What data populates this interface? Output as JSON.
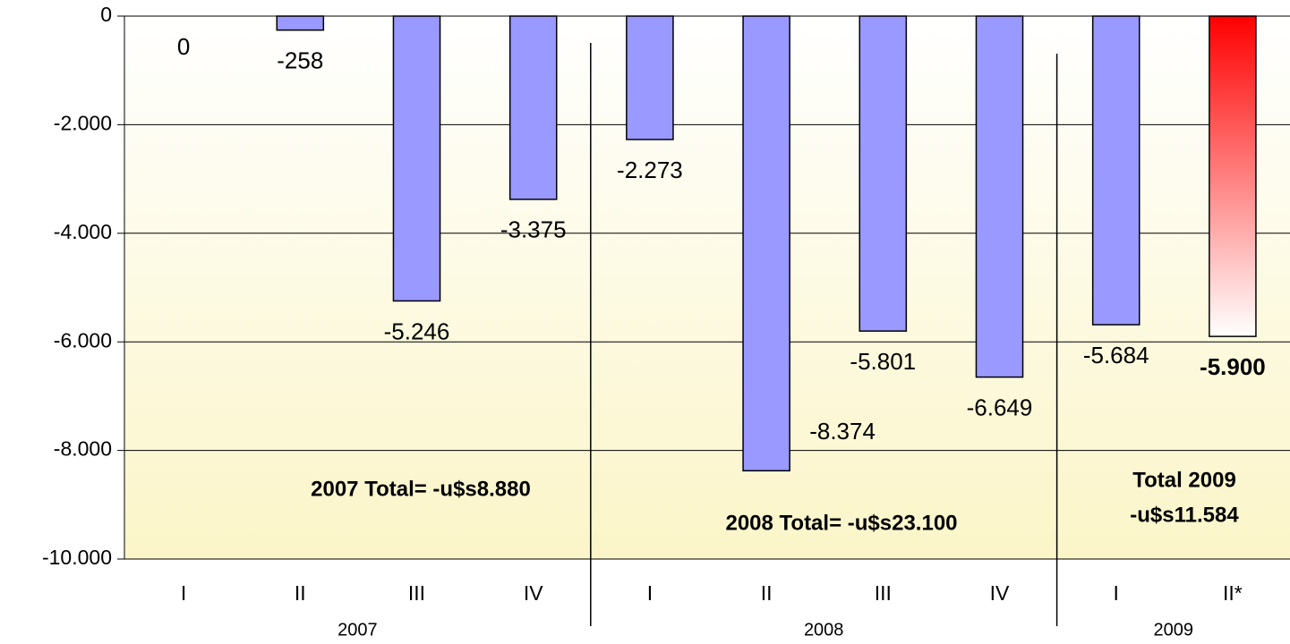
{
  "chart_data": {
    "type": "bar",
    "categories": [
      "I",
      "II",
      "III",
      "IV",
      "I",
      "II",
      "III",
      "IV",
      "I",
      "II*"
    ],
    "values": [
      0,
      -258,
      -5246,
      -3375,
      -2273,
      -8374,
      -5801,
      -6649,
      -5684,
      -5900
    ],
    "value_labels": [
      "0",
      "-258",
      "-5.246",
      "-3.375",
      "-2.273",
      "-8.374",
      "-5.801",
      "-6.649",
      "-5.684",
      "-5.900"
    ],
    "color": "#9999ff",
    "highlight": {
      "index": 9,
      "color": "#ff0000"
    },
    "groups": [
      {
        "label": "2007",
        "size": 4
      },
      {
        "label": "2008",
        "size": 4
      },
      {
        "label": "2009",
        "size": 2
      }
    ],
    "ylim": [
      -10000,
      0
    ],
    "yticks": [
      0,
      {
        "value": -2000,
        "label": "-2.000"
      },
      {
        "value": -4000,
        "label": "-4.000"
      },
      {
        "value": -6000,
        "label": "-6.000"
      },
      {
        "value": -8000,
        "label": "-8.000"
      },
      {
        "value": -10000,
        "label": "-10.000"
      }
    ],
    "grid": true,
    "annotations": [
      "2007 Total= -u$s8.880",
      "2008 Total= -u$s23.100",
      "Total 2009",
      "-u$s11.584"
    ]
  }
}
